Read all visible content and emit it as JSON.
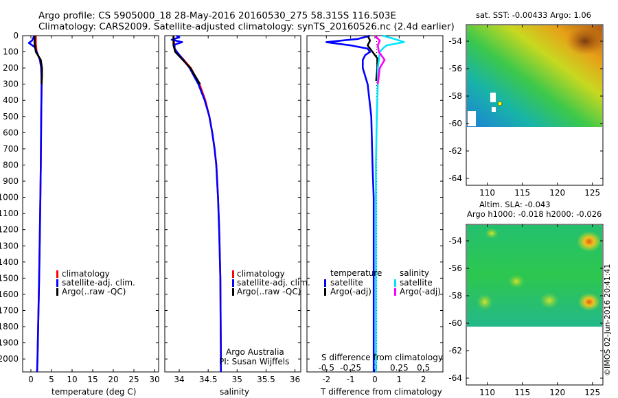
{
  "header": {
    "line1": "Argo profile: CS 5905000_18 28-May-2016 20160530_275 58.315S 116.503E",
    "line2": "Climatology: CARS2009. Satellite-adjusted climatology: synTS_20160526.nc (2.4d earlier)"
  },
  "colors": {
    "climatology": "#ff0000",
    "satellite_adj": "#0000ff",
    "argo": "#000000",
    "sal_satellite": "#00e5ff",
    "sal_argo": "#ff00ff"
  },
  "depth_ticks": [
    "0",
    "100",
    "200",
    "300",
    "400",
    "500",
    "600",
    "700",
    "800",
    "900",
    "1000",
    "1100",
    "1200",
    "1300",
    "1400",
    "1500",
    "1600",
    "1700",
    "1800",
    "1900",
    "2000"
  ],
  "chart_data": [
    {
      "type": "line",
      "id": "temperature",
      "xlabel": "temperature (deg C)",
      "xlim": [
        -2,
        31
      ],
      "ylim": [
        2080,
        0
      ],
      "xticks": [
        "0",
        "5",
        "10",
        "15",
        "20",
        "25",
        "30"
      ],
      "legend": [
        "climatology",
        "satellite-adj. clim.",
        "Argo(..raw -QC)"
      ],
      "series": [
        {
          "name": "climatology",
          "depth": [
            0,
            50,
            100,
            150,
            200,
            300,
            500,
            800,
            1000,
            1200,
            1500,
            2000,
            2080
          ],
          "values": [
            1.2,
            1.2,
            1.4,
            2.2,
            2.5,
            2.6,
            2.5,
            2.4,
            2.3,
            2.2,
            2.0,
            1.6,
            1.5
          ]
        },
        {
          "name": "satellite-adj. clim.",
          "depth": [
            0,
            30,
            45,
            70,
            100,
            150,
            200,
            300,
            500,
            800,
            1000,
            1500,
            2000,
            2080
          ],
          "values": [
            0.8,
            0.3,
            -0.5,
            0.9,
            1.4,
            2.2,
            2.5,
            2.6,
            2.5,
            2.4,
            2.3,
            2.0,
            1.6,
            1.5
          ]
        },
        {
          "name": "Argo(..raw -QC)",
          "depth": [
            0,
            50,
            100,
            150,
            200,
            250,
            300
          ],
          "values": [
            0.9,
            0.9,
            1.2,
            2.4,
            2.7,
            2.7,
            2.6
          ]
        }
      ]
    },
    {
      "type": "line",
      "id": "salinity",
      "xlabel": "salinity",
      "xlim": [
        33.75,
        36.1
      ],
      "ylim": [
        2080,
        0
      ],
      "xticks": [
        "34",
        "34.5",
        "35",
        "35.5",
        "36"
      ],
      "legend": [
        "climatology",
        "satellite-adj. clim.",
        "Argo(..raw -QC)"
      ],
      "annotation": [
        "Argo Australia",
        "PI: Susan Wijffels"
      ],
      "series": [
        {
          "name": "climatology",
          "depth": [
            0,
            80,
            100,
            150,
            200,
            300,
            400,
            500,
            600,
            700,
            800,
            1000,
            1200,
            1500,
            2000,
            2080
          ],
          "values": [
            33.9,
            33.92,
            33.95,
            34.08,
            34.2,
            34.35,
            34.45,
            34.52,
            34.57,
            34.61,
            34.64,
            34.67,
            34.69,
            34.71,
            34.72,
            34.72
          ]
        },
        {
          "name": "satellite-adj. clim.",
          "depth": [
            0,
            10,
            25,
            40,
            55,
            80,
            100,
            150,
            200,
            300,
            400,
            500,
            600,
            700,
            800,
            1000,
            1200,
            1500,
            2000,
            2080
          ],
          "values": [
            33.95,
            34.0,
            33.87,
            34.05,
            33.92,
            33.92,
            33.96,
            34.07,
            34.18,
            34.33,
            34.44,
            34.52,
            34.57,
            34.61,
            34.64,
            34.67,
            34.69,
            34.71,
            34.72,
            34.72
          ]
        },
        {
          "name": "Argo(..raw -QC)",
          "depth": [
            0,
            60,
            100,
            150,
            200,
            300
          ],
          "values": [
            33.9,
            33.9,
            33.93,
            34.06,
            34.19,
            34.36
          ]
        }
      ]
    },
    {
      "type": "line",
      "id": "difference",
      "xlabel": "T difference from climatology",
      "xlabel_top": "S difference from climatology",
      "xlim": [
        -2.8,
        2.8
      ],
      "ylim": [
        2080,
        0
      ],
      "xticks": [
        "-2",
        "-1",
        "0",
        "1",
        "2"
      ],
      "xticks_s": [
        "-0.5",
        "-0.25",
        "0",
        "0.25",
        "0.5"
      ],
      "legend_groups": [
        {
          "title": "temperature",
          "items": [
            "satellite",
            "Argo(-adj)"
          ]
        },
        {
          "title": "salinity",
          "items": [
            "satellite",
            "Argo(-adj)"
          ]
        }
      ],
      "series": [
        {
          "name": "satellite",
          "group": "temperature",
          "depth": [
            0,
            20,
            40,
            60,
            80,
            100,
            120,
            150,
            200,
            300,
            500,
            800,
            1000,
            1500,
            2000,
            2080
          ],
          "values": [
            -0.2,
            -0.7,
            -2.0,
            -1.0,
            -0.3,
            -0.2,
            -0.4,
            -0.5,
            -0.5,
            -0.3,
            -0.15,
            -0.1,
            -0.05,
            -0.05,
            -0.05,
            -0.05
          ]
        },
        {
          "name": "Argo(-adj)",
          "group": "temperature",
          "depth": [
            0,
            30,
            60,
            100,
            140,
            200,
            280
          ],
          "values": [
            -0.3,
            -0.2,
            -0.3,
            -0.1,
            0.1,
            0.1,
            0.05
          ]
        },
        {
          "name": "satellite",
          "group": "salinity",
          "depth": [
            0,
            20,
            40,
            60,
            80,
            100,
            150,
            200,
            300,
            500,
            800,
            1000,
            1500,
            2000,
            2080
          ],
          "values": [
            0.08,
            0.2,
            0.3,
            0.12,
            0.08,
            0.05,
            0.04,
            0.03,
            0.03,
            0.02,
            0.01,
            0.01,
            0.01,
            0.01,
            0.01
          ]
        },
        {
          "name": "Argo(-adj)",
          "group": "salinity",
          "depth": [
            0,
            30,
            60,
            100,
            150,
            200,
            300
          ],
          "values": [
            0.0,
            0.05,
            0.03,
            0.04,
            0.1,
            0.05,
            0.03
          ]
        }
      ]
    },
    {
      "type": "heatmap",
      "id": "sst_map",
      "title": "sat. SST: -0.00433  Argo: 1.06",
      "xlim": [
        107,
        126.5
      ],
      "ylim": [
        -64.5,
        -52.8
      ],
      "xticks": [
        "110",
        "115",
        "120",
        "125"
      ],
      "yticks": [
        "-54",
        "-56",
        "-58",
        "-60",
        "-62",
        "-64"
      ],
      "data_extent_lat": -60
    },
    {
      "type": "heatmap",
      "id": "sla_map",
      "title": [
        "Altim. SLA: -0.043",
        "Argo h1000: -0.018  h2000: -0.026"
      ],
      "xlim": [
        107,
        126.5
      ],
      "ylim": [
        -64.5,
        -52.8
      ],
      "xticks": [
        "110",
        "115",
        "120",
        "125"
      ],
      "yticks": [
        "-54",
        "-56",
        "-58",
        "-60",
        "-62",
        "-64"
      ],
      "data_extent_lat": -60
    }
  ],
  "credit": "©IMOS 02-Jun-2016 20:41:41"
}
